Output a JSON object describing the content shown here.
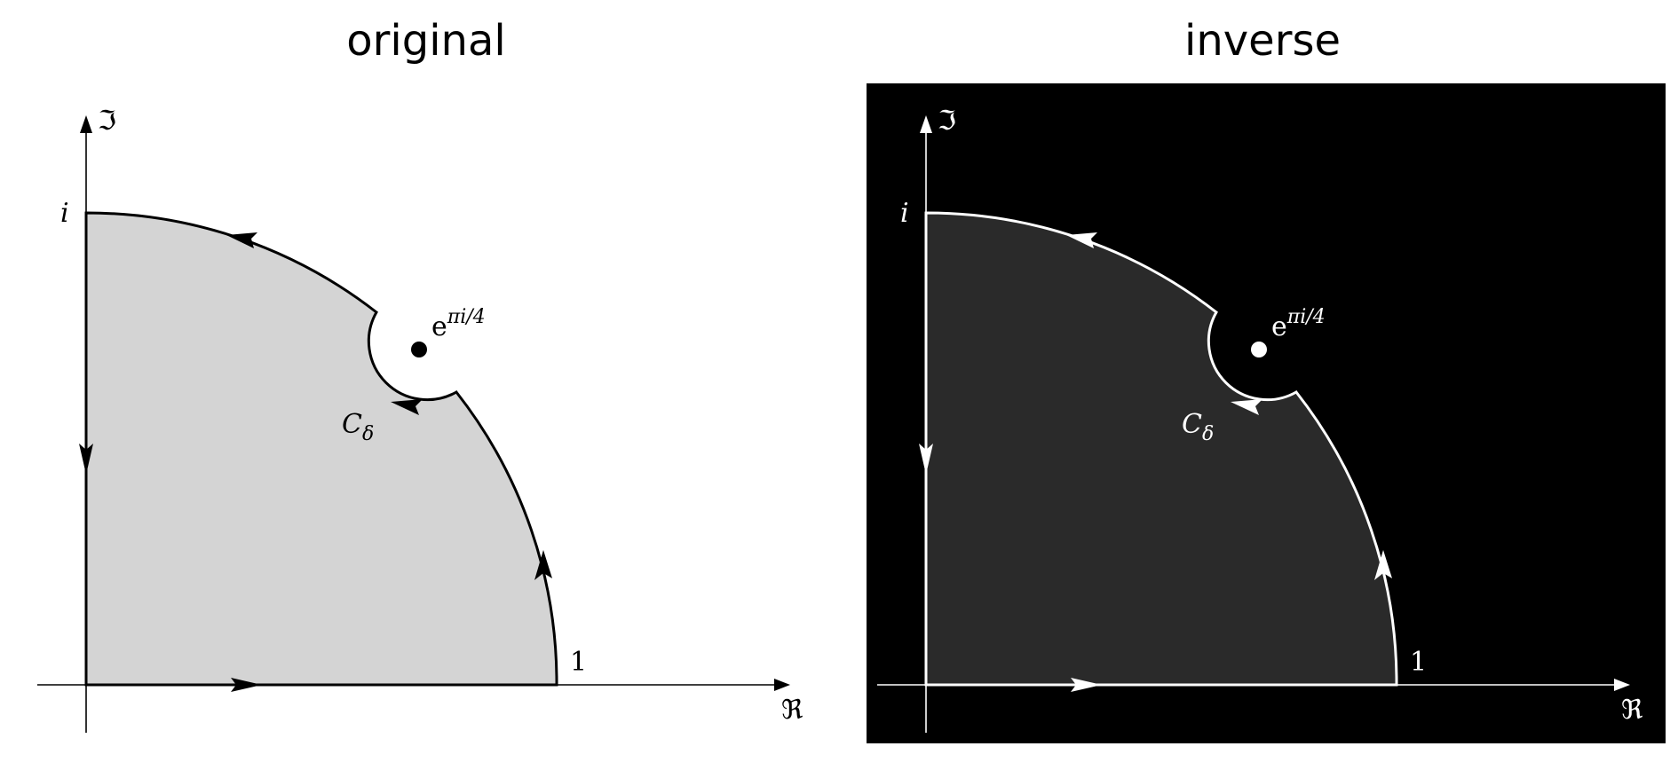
{
  "panels": {
    "left": {
      "title": "original",
      "background": "#ffffff",
      "region_fill": "#d4d4d4",
      "ink": "#000000"
    },
    "right": {
      "title": "inverse",
      "background": "#000000",
      "region_fill": "#2a2a2a",
      "ink": "#ffffff"
    }
  },
  "labels": {
    "imag_axis": "ℑ",
    "real_axis": "ℜ",
    "i": "i",
    "one": "1",
    "pole_base": "e",
    "pole_exponent": "πi/4",
    "contour_base": "C",
    "contour_sub": "δ"
  }
}
